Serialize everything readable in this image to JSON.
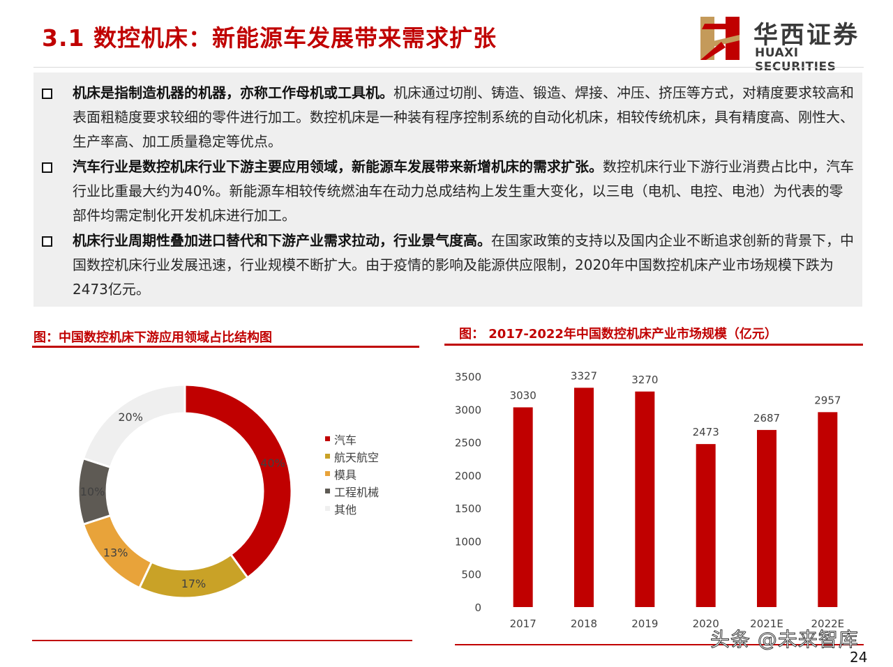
{
  "title": "3.1 数控机床：新能源车发展带来需求扩张",
  "logo": {
    "name_cn": "华西证券",
    "name_en": "HUAXI SECURITIES"
  },
  "bullets": [
    {
      "bold": "机床是指制造机器的机器，亦称工作母机或工具机。",
      "text": "机床通过切削、铸造、锻造、焊接、冲压、挤压等方式，对精度要求较高和表面粗糙度要求较细的零件进行加工。数控机床是一种装有程序控制系统的自动化机床，相较传统机床，具有精度高、刚性大、生产率高、加工质量稳定等优点。"
    },
    {
      "bold": "汽车行业是数控机床行业下游主要应用领域，新能源车发展带来新增机床的需求扩张。",
      "text": "数控机床行业下游行业消费占比中，汽车行业比重最大约为40%。新能源车相较传统燃油车在动力总成结构上发生重大变化，以三电（电机、电控、电池）为代表的零部件均需定制化开发机床进行加工。"
    },
    {
      "bold": "机床行业周期性叠加进口替代和下游产业需求拉动，行业景气度高。",
      "text": "在国家政策的支持以及国内企业不断追求创新的背景下，中国数控机床行业发展迅速，行业规模不断扩大。由于疫情的影响及能源供应限制，2020年中国数控机床产业市场规模下跌为2473亿元。"
    }
  ],
  "left_chart_title": "图：中国数控机床下游应用领域占比结构图",
  "right_chart_title": "图： 2017-2022年中国数控机床产业市场规模（亿元）",
  "chart_data": [
    {
      "type": "pie",
      "donut": true,
      "title": "图：中国数控机床下游应用领域占比结构图",
      "legend_position": "right",
      "slices": [
        {
          "label": "汽车",
          "value": 40,
          "value_label": "40%",
          "color": "#c00000"
        },
        {
          "label": "航天航空",
          "value": 17,
          "value_label": "17%",
          "color": "#c9a227"
        },
        {
          "label": "模具",
          "value": 13,
          "value_label": "13%",
          "color": "#e8a33a"
        },
        {
          "label": "工程机械",
          "value": 10,
          "value_label": "10%",
          "color": "#5e5a54"
        },
        {
          "label": "其他",
          "value": 20,
          "value_label": "20%",
          "color": "#efefef"
        }
      ]
    },
    {
      "type": "bar",
      "title": "图： 2017-2022年中国数控机床产业市场规模（亿元）",
      "categories": [
        "2017",
        "2018",
        "2019",
        "2020",
        "2021E",
        "2022E"
      ],
      "values": [
        3030,
        3327,
        3270,
        2473,
        2687,
        2957
      ],
      "value_labels": [
        "3030",
        "3327",
        "3270",
        "2473",
        "2687",
        "2957"
      ],
      "ylim": [
        0,
        3500
      ],
      "yticks": [
        0,
        500,
        1000,
        1500,
        2000,
        2500,
        3000,
        3500
      ],
      "ytick_labels": [
        "0",
        "500",
        "1000",
        "1500",
        "2000",
        "2500",
        "3000",
        "3500"
      ],
      "grid": false,
      "bar_color": "#c00000"
    }
  ],
  "watermark": "头条 @未来智库",
  "page_number": "24"
}
